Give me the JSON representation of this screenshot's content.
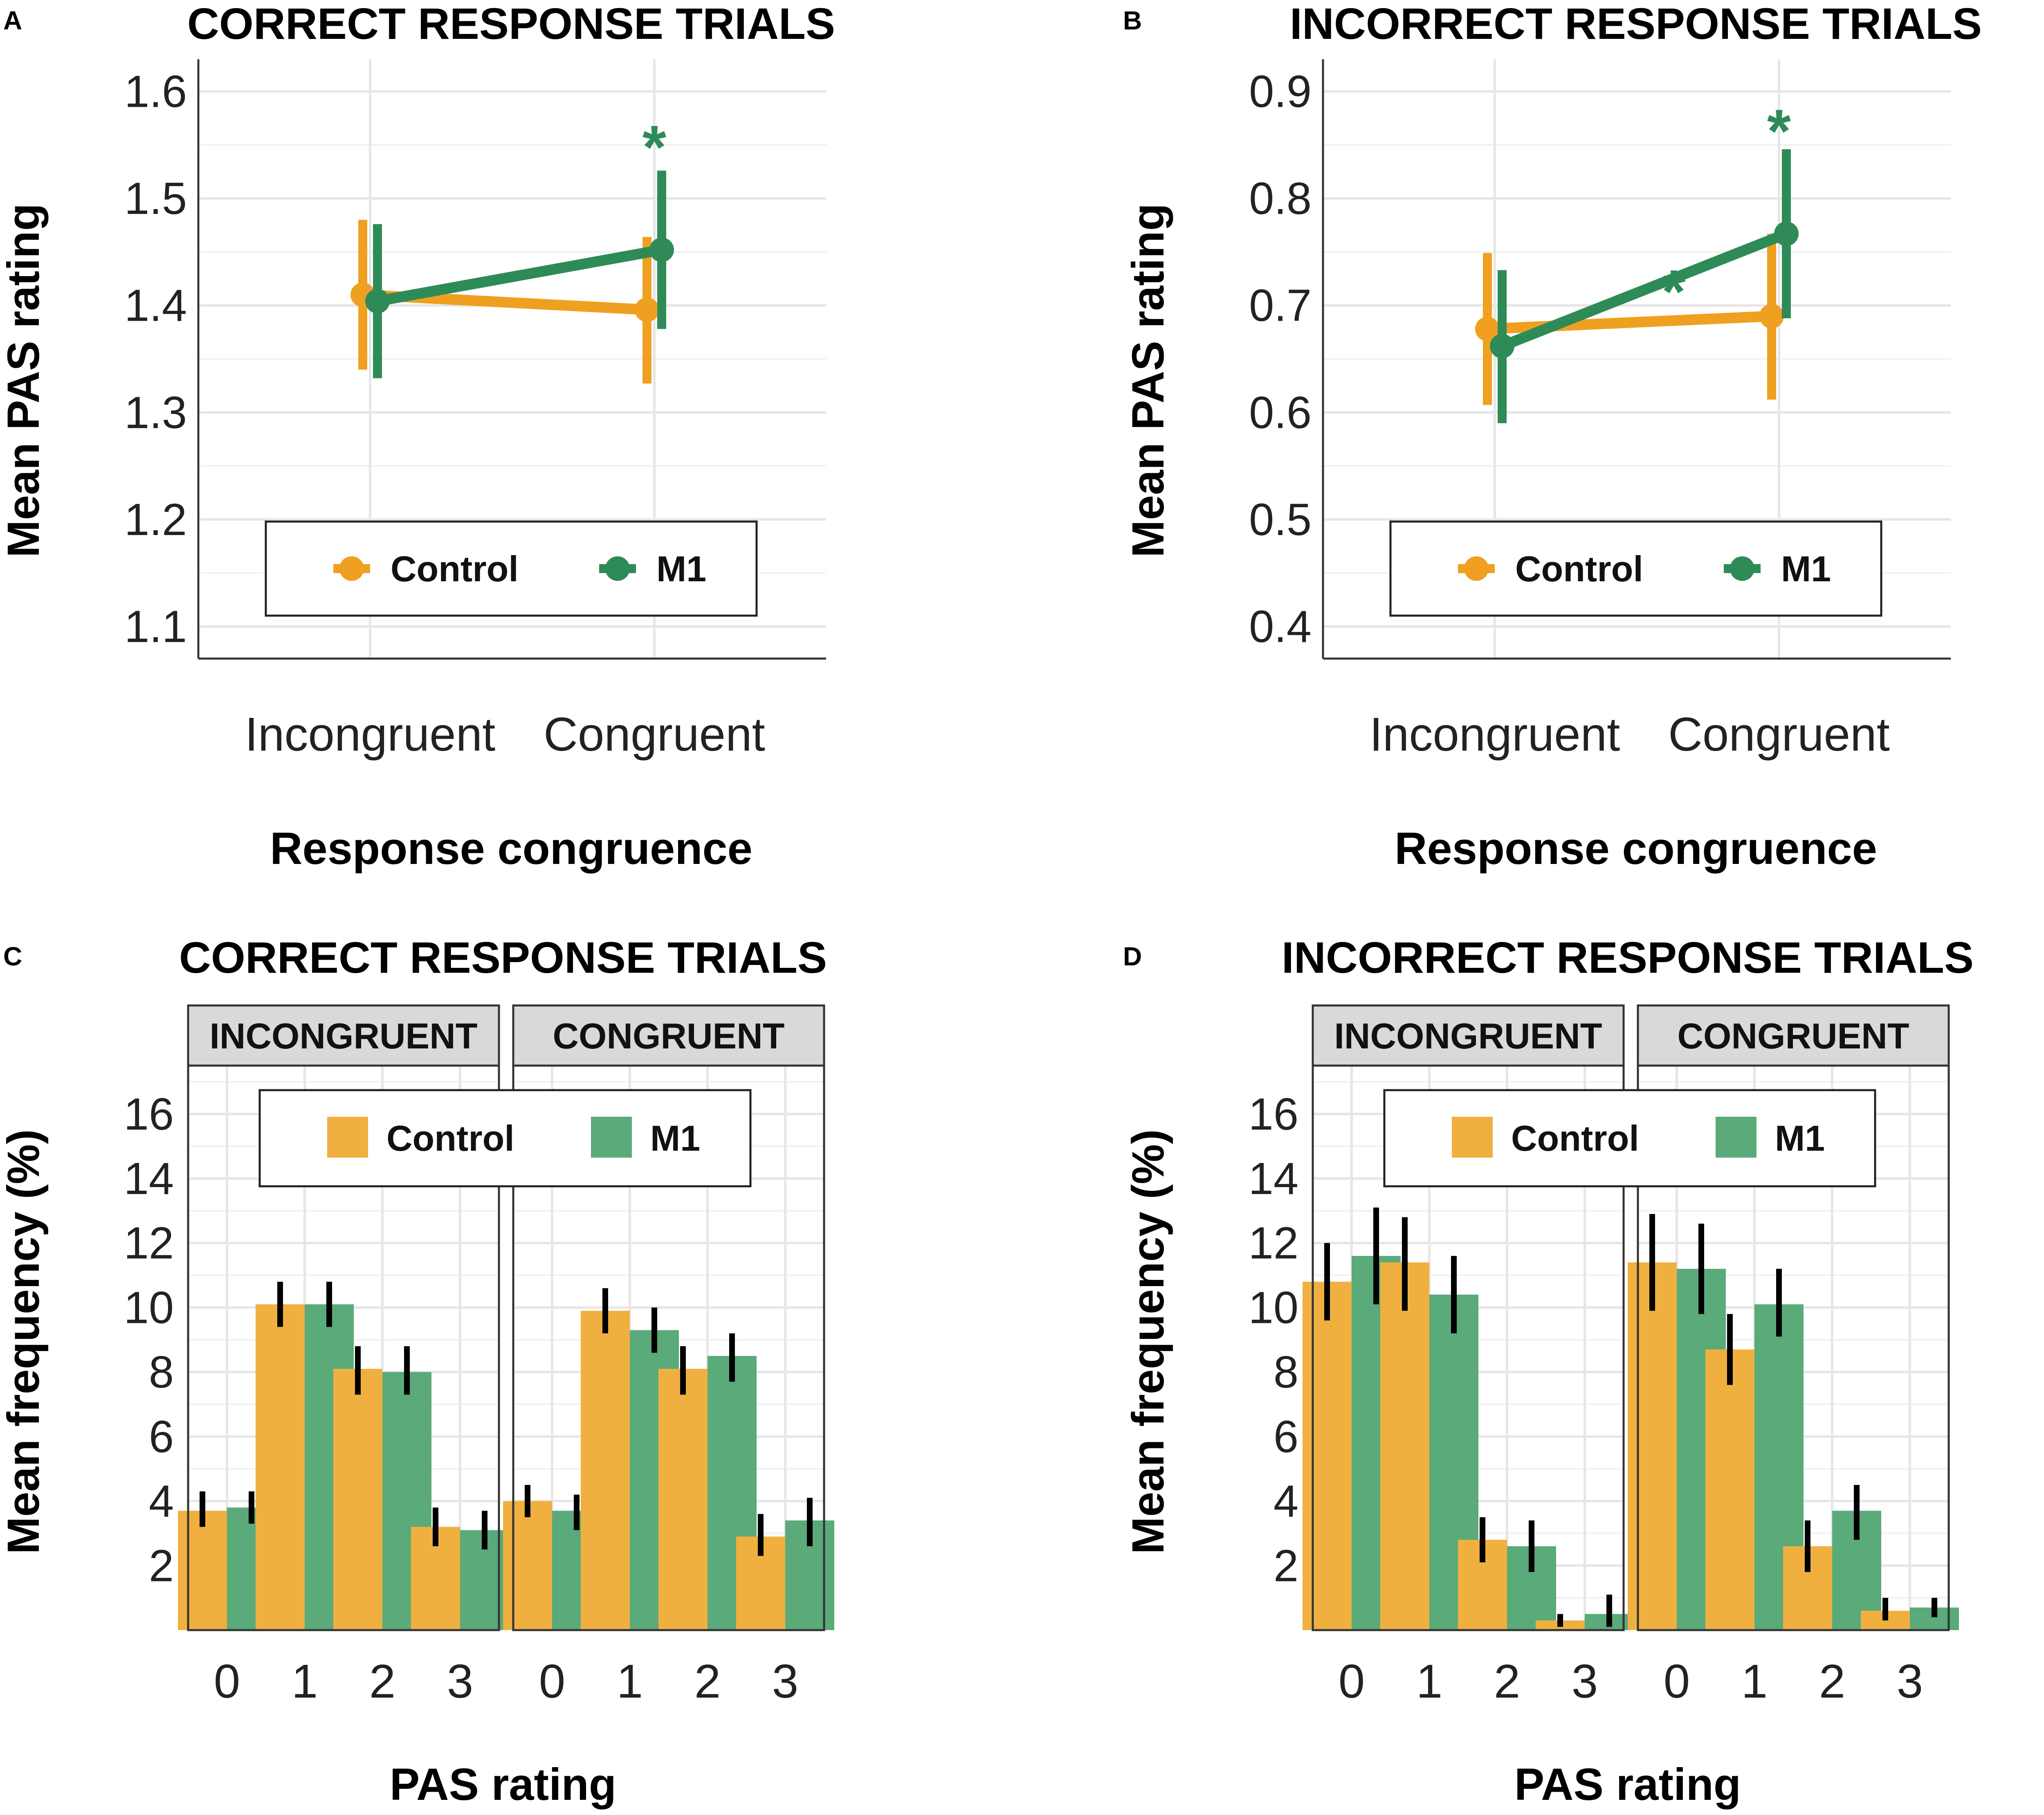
{
  "colors": {
    "control": "#f0a020",
    "m1": "#2e8b57",
    "control_bar": "#f0b040",
    "m1_bar": "#5aaa7a",
    "errorbar": "#000000",
    "star": "#2e8b57",
    "strip": "#d9d9d9"
  },
  "chart_data": [
    {
      "type": "line",
      "panel": "A",
      "title": "CORRECT RESPONSE TRIALS",
      "xlabel": "Response congruence",
      "ylabel": "Mean PAS rating",
      "categories": [
        "Incongruent",
        "Congruent"
      ],
      "ylim": [
        1.07,
        1.63
      ],
      "yticks": [
        1.1,
        1.2,
        1.3,
        1.4,
        1.5,
        1.6
      ],
      "ytick_labels": [
        "1.1",
        "1.2",
        "1.3",
        "1.4",
        "1.5",
        "1.6"
      ],
      "legend": [
        "Control",
        "M1"
      ],
      "series": [
        {
          "name": "Control",
          "values": [
            1.41,
            1.396
          ],
          "lower": [
            1.34,
            1.327
          ],
          "upper": [
            1.48,
            1.464
          ]
        },
        {
          "name": "M1",
          "values": [
            1.404,
            1.452
          ],
          "lower": [
            1.332,
            1.378
          ],
          "upper": [
            1.476,
            1.526
          ]
        }
      ],
      "annotations": [
        {
          "text": "*",
          "category": "Congruent",
          "y": 1.555
        }
      ]
    },
    {
      "type": "line",
      "panel": "B",
      "title": "INCORRECT RESPONSE TRIALS",
      "xlabel": "Response congruence",
      "ylabel": "Mean PAS rating",
      "categories": [
        "Incongruent",
        "Congruent"
      ],
      "ylim": [
        0.37,
        0.93
      ],
      "yticks": [
        0.4,
        0.5,
        0.6,
        0.7,
        0.8,
        0.9
      ],
      "ytick_labels": [
        "0.4",
        "0.5",
        "0.6",
        "0.7",
        "0.8",
        "0.9"
      ],
      "legend": [
        "Control",
        "M1"
      ],
      "series": [
        {
          "name": "Control",
          "values": [
            0.678,
            0.69
          ],
          "lower": [
            0.607,
            0.612
          ],
          "upper": [
            0.749,
            0.767
          ]
        },
        {
          "name": "M1",
          "values": [
            0.662,
            0.767
          ],
          "lower": [
            0.59,
            0.688
          ],
          "upper": [
            0.733,
            0.846
          ]
        }
      ],
      "annotations": [
        {
          "text": "*",
          "category": "Congruent",
          "y": 0.87
        },
        {
          "text": "*",
          "between": [
            "Incongruent",
            "Congruent"
          ],
          "y": 0.72
        }
      ]
    },
    {
      "type": "bar",
      "panel": "C",
      "title": "CORRECT RESPONSE TRIALS",
      "xlabel": "PAS rating",
      "ylabel": "Mean frequency (%)",
      "facets": [
        "INCONGRUENT",
        "CONGRUENT"
      ],
      "categories": [
        "0",
        "1",
        "2",
        "3"
      ],
      "ylim": [
        0,
        17.5
      ],
      "yticks": [
        2,
        4,
        6,
        8,
        10,
        12,
        14,
        16
      ],
      "ytick_labels": [
        "2",
        "4",
        "6",
        "8",
        "10",
        "12",
        "14",
        "16"
      ],
      "legend": [
        "Control",
        "M1"
      ],
      "series": [
        {
          "name": "Control",
          "values": [
            [
              3.7,
              10.1,
              8.1,
              3.2
            ],
            [
              4.0,
              9.9,
              8.1,
              2.9
            ]
          ],
          "lower": [
            [
              3.2,
              9.4,
              7.3,
              2.6
            ],
            [
              3.5,
              9.2,
              7.3,
              2.3
            ]
          ],
          "upper": [
            [
              4.3,
              10.8,
              8.8,
              3.8
            ],
            [
              4.5,
              10.6,
              8.8,
              3.6
            ]
          ]
        },
        {
          "name": "M1",
          "values": [
            [
              3.8,
              10.1,
              8.0,
              3.1
            ],
            [
              3.7,
              9.3,
              8.5,
              3.4
            ]
          ],
          "lower": [
            [
              3.3,
              9.4,
              7.3,
              2.5
            ],
            [
              3.1,
              8.6,
              7.7,
              2.6
            ]
          ],
          "upper": [
            [
              4.3,
              10.8,
              8.8,
              3.7
            ],
            [
              4.2,
              10.0,
              9.2,
              4.1
            ]
          ]
        }
      ]
    },
    {
      "type": "bar",
      "panel": "D",
      "title": "INCORRECT RESPONSE TRIALS",
      "xlabel": "PAS rating",
      "ylabel": "Mean frequency (%)",
      "facets": [
        "INCONGRUENT",
        "CONGRUENT"
      ],
      "categories": [
        "0",
        "1",
        "2",
        "3"
      ],
      "ylim": [
        0,
        17.5
      ],
      "yticks": [
        2,
        4,
        6,
        8,
        10,
        12,
        14,
        16
      ],
      "ytick_labels": [
        "2",
        "4",
        "6",
        "8",
        "10",
        "12",
        "14",
        "16"
      ],
      "legend": [
        "Control",
        "M1"
      ],
      "series": [
        {
          "name": "Control",
          "values": [
            [
              10.8,
              11.4,
              2.8,
              0.3
            ],
            [
              11.4,
              8.7,
              2.6,
              0.6
            ]
          ],
          "lower": [
            [
              9.6,
              9.9,
              2.1,
              0.1
            ],
            [
              9.9,
              7.6,
              1.8,
              0.3
            ]
          ],
          "upper": [
            [
              12.0,
              12.8,
              3.5,
              0.5
            ],
            [
              12.9,
              9.8,
              3.4,
              1.0
            ]
          ]
        },
        {
          "name": "M1",
          "values": [
            [
              11.6,
              10.4,
              2.6,
              0.5
            ],
            [
              11.2,
              10.1,
              3.7,
              0.7
            ]
          ],
          "lower": [
            [
              10.1,
              9.2,
              1.8,
              0.1
            ],
            [
              9.8,
              9.1,
              2.8,
              0.4
            ]
          ],
          "upper": [
            [
              13.1,
              11.6,
              3.4,
              1.1
            ],
            [
              12.6,
              11.2,
              4.5,
              1.0
            ]
          ]
        }
      ]
    }
  ]
}
